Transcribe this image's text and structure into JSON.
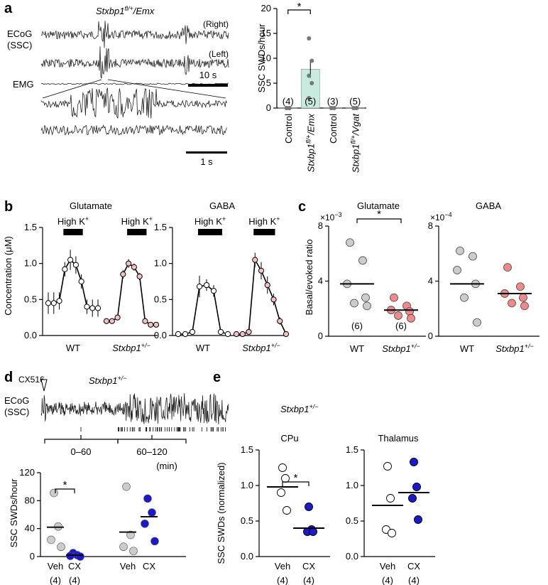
{
  "chart_data": [
    {
      "id": "a_bar",
      "type": "bar",
      "panel_label": "a",
      "panel_title": "Stxbp1fl/+/Emx",
      "traces": {
        "ecog_label": [
          "ECoG",
          "(SSC)"
        ],
        "right": "(Right)",
        "left": "(Left)",
        "emg": "EMG",
        "scale1": "10 s",
        "scale2": "1 s"
      },
      "ylabel": "SSC SWDs/hour",
      "ylim": [
        0,
        20
      ],
      "yticks": [
        "0",
        "5",
        "10",
        "15",
        "20"
      ],
      "categories": [
        "Control",
        "Stxbp1fl/+/Emx",
        "Control",
        "Stxbp1fl/+/Vgat"
      ],
      "values": [
        0.1,
        7.8,
        0.1,
        0.1
      ],
      "n_labels": [
        "(4)",
        "(5)",
        "(3)",
        "(5)"
      ],
      "points": [
        [
          0,
          0,
          0,
          0
        ],
        [
          14,
          9.5,
          6.5,
          5,
          2
        ],
        [
          0,
          0,
          0
        ],
        [
          0,
          0,
          0,
          0,
          0
        ]
      ],
      "sig": "*",
      "colors": {
        "bar": "#c8ebe0",
        "point": "#777777"
      }
    },
    {
      "id": "b_glu",
      "type": "line",
      "panel_label": "b",
      "title": "Glutamate",
      "ylabel": "Concentration (μM)",
      "ylim": [
        0,
        1.5
      ],
      "yticks": [
        "0.0",
        "0.5",
        "1.0",
        "1.5"
      ],
      "stim_label": "High K+",
      "groups": [
        {
          "name": "WT",
          "values": [
            0.45,
            0.45,
            0.48,
            0.92,
            1.05,
            0.98,
            0.75,
            0.4,
            0.38,
            0.38
          ],
          "errors": [
            0.15,
            0.15,
            0.12,
            0.1,
            0.14,
            0.12,
            0.1,
            0.1,
            0.12,
            0.12
          ],
          "stim": [
            3,
            6
          ]
        },
        {
          "name": "Stxbp1+/−",
          "values": [
            0.2,
            0.2,
            0.25,
            0.85,
            1.0,
            0.95,
            0.82,
            0.2,
            0.15,
            0.15
          ],
          "errors": [
            0.02,
            0.02,
            0.03,
            0.06,
            0.06,
            0.05,
            0.05,
            0.03,
            0.02,
            0.02
          ],
          "stim": [
            4,
            7
          ]
        }
      ],
      "colors": {
        "wt": "#ffffff",
        "het": "#f5c0c0"
      }
    },
    {
      "id": "b_gaba",
      "type": "line",
      "panel_label": "",
      "title": "GABA",
      "ylim": [
        0,
        1.5
      ],
      "yticks": [
        "0.0",
        "0.5",
        "1.0",
        "1.5"
      ],
      "stim_label": "High K+",
      "groups": [
        {
          "name": "WT",
          "values": [
            0.02,
            0.02,
            0.05,
            0.68,
            0.7,
            0.62,
            0.05,
            0.02
          ],
          "errors": [
            0.01,
            0.01,
            0.02,
            0.15,
            0.08,
            0.08,
            0.02,
            0.01
          ],
          "stim": [
            3,
            6
          ]
        },
        {
          "name": "Stxbp1+/−",
          "values": [
            0.02,
            0.02,
            0.05,
            1.05,
            0.9,
            0.7,
            0.5,
            0.2,
            0.02
          ],
          "errors": [
            0.01,
            0.01,
            0.02,
            0.1,
            0.12,
            0.12,
            0.08,
            0.05,
            0.01
          ],
          "stim": [
            3,
            6
          ]
        }
      ],
      "colors": {
        "wt": "#ffffff",
        "het": "#f5c0c0"
      }
    },
    {
      "id": "c_glu",
      "type": "scatter",
      "panel_label": "c",
      "title": "Glutamate",
      "ylabel": "Basal/evoked ratio",
      "exponent": "×10−3",
      "ylim": [
        0,
        8
      ],
      "yticks": [
        "0",
        "4",
        "8"
      ],
      "categories": [
        "WT",
        "Stxbp1+/−"
      ],
      "points": [
        [
          6.8,
          5.5,
          3.8,
          2.8,
          2.4,
          2.2
        ],
        [
          2.8,
          2.2,
          1.9,
          1.8,
          1.5,
          1.3
        ]
      ],
      "means": [
        3.8,
        1.9
      ],
      "n_labels": [
        "(6)",
        "(6)"
      ],
      "sig": "*",
      "colors": {
        "wt": "#cccccc",
        "het": "#f08a8a"
      }
    },
    {
      "id": "c_gaba",
      "type": "scatter",
      "panel_label": "",
      "title": "GABA",
      "exponent": "×10−4",
      "ylim": [
        0,
        8
      ],
      "yticks": [
        "0",
        "4",
        "8"
      ],
      "categories": [
        "WT",
        "Stxbp1+/−"
      ],
      "points": [
        [
          6.2,
          5.8,
          4.8,
          3.8,
          2.8,
          1.0
        ],
        [
          5.0,
          3.6,
          3.1,
          2.8,
          2.4,
          2.2
        ]
      ],
      "means": [
        3.8,
        3.1
      ],
      "colors": {
        "wt": "#cccccc",
        "het": "#f08a8a"
      }
    },
    {
      "id": "d",
      "type": "scatter",
      "panel_label": "d",
      "drug_label": "CX516",
      "genotype": "Stxbp1+/−",
      "ecog_label": [
        "ECoG",
        "(SSC)"
      ],
      "windows": [
        "0–60",
        "60–120"
      ],
      "unit": "(min)",
      "ylabel": "SSC SWDs/hour",
      "ylim": [
        0,
        120
      ],
      "yticks": [
        "0",
        "40",
        "80",
        "120"
      ],
      "categories": [
        "Veh",
        "CX",
        "Veh",
        "CX"
      ],
      "n_labels": [
        "(4)",
        "(4)"
      ],
      "points": [
        [
          91,
          43,
          24,
          14
        ],
        [
          5,
          2,
          1,
          0
        ],
        [
          100,
          31,
          14,
          8
        ],
        [
          83,
          63,
          47,
          22
        ]
      ],
      "means": [
        42,
        2,
        35,
        57
      ],
      "sig": "*",
      "colors": {
        "veh": "#cccccc",
        "cx": "#1a1acc"
      }
    },
    {
      "id": "e_cpu",
      "type": "scatter",
      "panel_label": "e",
      "genotype": "Stxbp1+/−",
      "title": "CPu",
      "ylabel": "SSC SWDs (normalized)",
      "ylim": [
        0,
        1.5
      ],
      "yticks": [
        "0.0",
        "0.5",
        "1.0",
        "1.5"
      ],
      "categories": [
        "Veh",
        "CX"
      ],
      "n_labels": [
        "(4)",
        "(4)"
      ],
      "points": [
        [
          1.25,
          1.1,
          0.9,
          0.65
        ],
        [
          0.7,
          0.38,
          0.35,
          0.35
        ]
      ],
      "means": [
        0.98,
        0.4
      ],
      "sig": "*",
      "colors": {
        "veh": "#ffffff",
        "cx": "#1a1acc"
      }
    },
    {
      "id": "e_thal",
      "type": "scatter",
      "panel_label": "",
      "title": "Thalamus",
      "ylim": [
        0,
        1.5
      ],
      "yticks": [
        "0.0",
        "0.5",
        "1.0",
        "1.5"
      ],
      "categories": [
        "Veh",
        "CX"
      ],
      "n_labels": [
        "(4)",
        "(4)"
      ],
      "points": [
        [
          1.27,
          0.82,
          0.38,
          0.33
        ],
        [
          1.33,
          0.98,
          0.82,
          0.52
        ]
      ],
      "means": [
        0.72,
        0.9
      ],
      "colors": {
        "veh": "#ffffff",
        "cx": "#1a1acc"
      }
    }
  ]
}
